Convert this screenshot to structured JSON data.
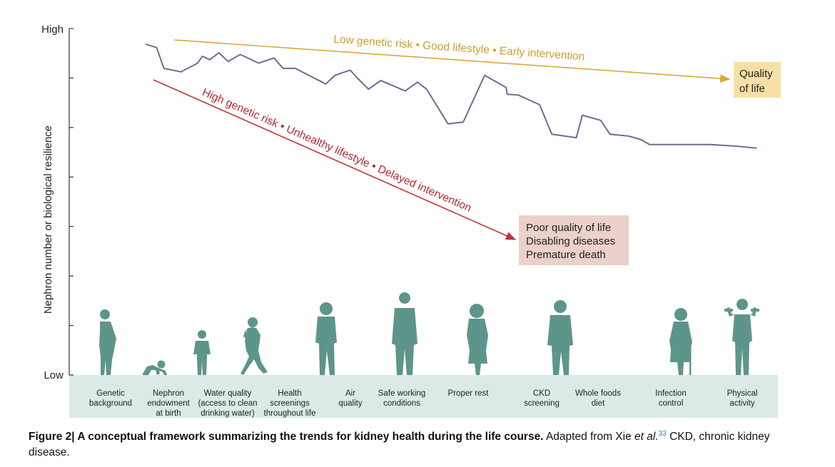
{
  "colors": {
    "resilience_line": "#7a6691",
    "good_arrow": "#d6a93a",
    "good_text": "#c9a030",
    "bad_arrow": "#c0343a",
    "bad_text": "#b32c33",
    "quality_box": "#f6e0a8",
    "poor_box": "#ecd0ca",
    "figure_silhouette": "#5e958a",
    "ground_band": "#dbeae6"
  },
  "y_axis": {
    "label": "Nephron number or biological resilience",
    "high_label": "High",
    "low_label": "Low",
    "tick_count": 8
  },
  "good_path": {
    "label": "Low genetic risk • Good lifestyle • Early intervention",
    "outcome_lines": [
      "Quality",
      "of life"
    ]
  },
  "bad_path": {
    "label": "High genetic risk • Unhealthy lifestyle • Delayed intervention",
    "outcome_lines": [
      "Poor quality of life",
      "Disabling diseases",
      "Premature death"
    ]
  },
  "resilience_trace": [
    [
      0.0,
      0.955
    ],
    [
      0.018,
      0.945
    ],
    [
      0.03,
      0.885
    ],
    [
      0.058,
      0.875
    ],
    [
      0.085,
      0.9
    ],
    [
      0.093,
      0.92
    ],
    [
      0.105,
      0.91
    ],
    [
      0.12,
      0.93
    ],
    [
      0.135,
      0.905
    ],
    [
      0.155,
      0.925
    ],
    [
      0.185,
      0.9
    ],
    [
      0.21,
      0.915
    ],
    [
      0.225,
      0.885
    ],
    [
      0.245,
      0.885
    ],
    [
      0.295,
      0.84
    ],
    [
      0.31,
      0.865
    ],
    [
      0.335,
      0.88
    ],
    [
      0.345,
      0.86
    ],
    [
      0.365,
      0.825
    ],
    [
      0.385,
      0.85
    ],
    [
      0.425,
      0.82
    ],
    [
      0.445,
      0.845
    ],
    [
      0.46,
      0.825
    ],
    [
      0.495,
      0.725
    ],
    [
      0.52,
      0.73
    ],
    [
      0.555,
      0.865
    ],
    [
      0.59,
      0.83
    ],
    [
      0.592,
      0.81
    ],
    [
      0.61,
      0.808
    ],
    [
      0.645,
      0.78
    ],
    [
      0.665,
      0.695
    ],
    [
      0.705,
      0.685
    ],
    [
      0.715,
      0.75
    ],
    [
      0.745,
      0.735
    ],
    [
      0.76,
      0.695
    ],
    [
      0.79,
      0.69
    ],
    [
      0.81,
      0.68
    ],
    [
      0.825,
      0.665
    ],
    [
      0.885,
      0.665
    ],
    [
      0.925,
      0.665
    ],
    [
      0.97,
      0.66
    ],
    [
      1.0,
      0.655
    ]
  ],
  "categories": [
    {
      "id": "genetic",
      "icon": "pregnant-woman-icon",
      "lines": [
        "Genetic",
        "background"
      ]
    },
    {
      "id": "nephron",
      "icon": "crawling-baby-icon",
      "lines": [
        "Nephron",
        "endowment",
        "at birth"
      ]
    },
    {
      "id": "water",
      "icon": "child-icon",
      "lines": [
        "Water quality",
        "(access to clean",
        "drinking water)"
      ]
    },
    {
      "id": "screenings",
      "icon": "walking-girl-icon",
      "lines": [
        "Health",
        "screenings",
        "throughout life"
      ]
    },
    {
      "id": "air",
      "icon": "teen-icon",
      "lines": [
        "Air",
        "quality"
      ]
    },
    {
      "id": "working",
      "icon": "man-standing-icon",
      "lines": [
        "Safe working",
        "conditions"
      ]
    },
    {
      "id": "rest",
      "icon": "woman-standing-icon",
      "lines": [
        "Proper rest"
      ]
    },
    {
      "id": "ckd",
      "icon": "adult-man-icon",
      "lines": [
        "CKD",
        "screening"
      ]
    },
    {
      "id": "diet",
      "icon": "",
      "lines": [
        "Whole foods",
        "diet"
      ]
    },
    {
      "id": "infection",
      "icon": "elderly-woman-with-cane-icon",
      "lines": [
        "Infection",
        "control"
      ]
    },
    {
      "id": "activity",
      "icon": "weightlifting-man-icon",
      "lines": [
        "Physical",
        "activity"
      ]
    }
  ],
  "caption": {
    "bold_part": "Figure 2| A conceptual framework summarizing the trends for kidney health during the life course.",
    "pre_ref": " Adapted from Xie ",
    "italic_part": "et al.",
    "ref_number": "33",
    "post_ref": " CKD, chronic kidney disease."
  }
}
